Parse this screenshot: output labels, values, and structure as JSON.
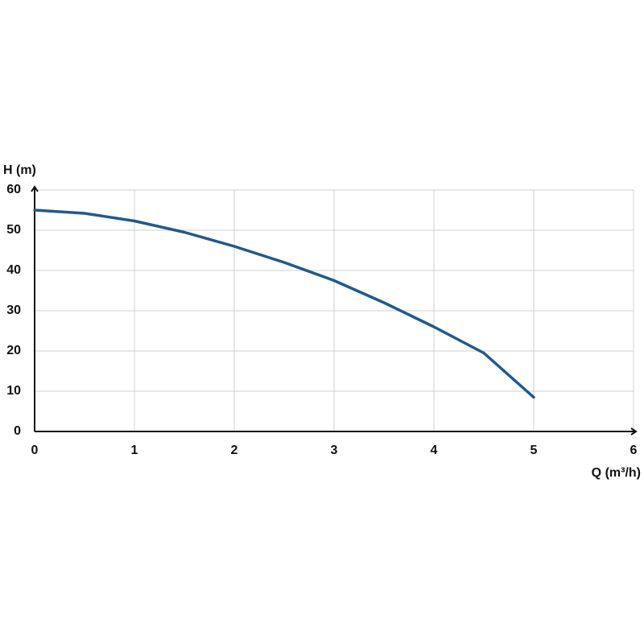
{
  "chart_data": {
    "type": "line",
    "y_label": "H (m)",
    "x_label": "Q (m³/h)",
    "x": [
      0,
      0.5,
      1,
      1.5,
      2,
      2.5,
      3,
      3.5,
      4,
      4.5,
      5
    ],
    "series": [
      {
        "color": "#1f5a8e",
        "values": [
          55,
          54.2,
          52.3,
          49.5,
          46,
          42,
          37.5,
          32,
          26,
          19.5,
          8.5
        ]
      }
    ],
    "xlim": [
      0,
      6
    ],
    "xticks": [
      0,
      1,
      2,
      3,
      4,
      5,
      6
    ],
    "ylim": [
      0,
      60
    ],
    "yticks": [
      0,
      10,
      20,
      30,
      40,
      50,
      60
    ],
    "grid": true
  }
}
